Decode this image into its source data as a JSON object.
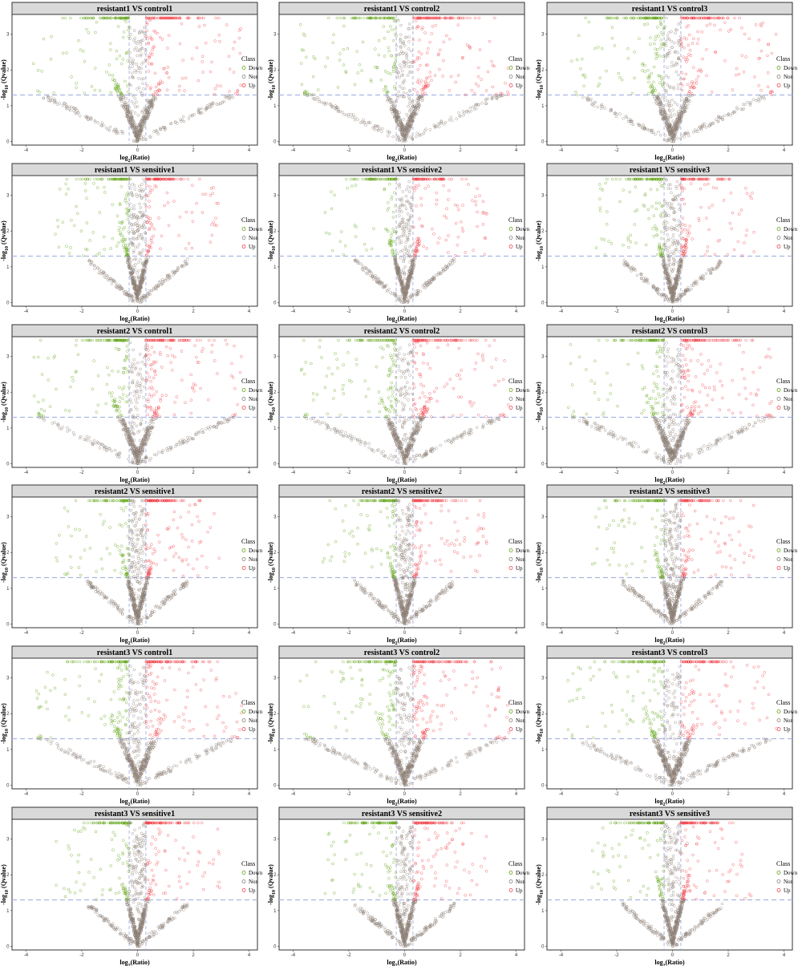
{
  "chart_data": [
    {
      "type": "scatter",
      "title": "resistant1 VS control1",
      "xlabel": "log2(Ratio)",
      "ylabel": "-log10 (Qvalue)",
      "xlim": [
        -4.5,
        4.3
      ],
      "ylim": [
        -0.1,
        3.55
      ],
      "thresholds": {
        "q": 1.3,
        "ratio": [
          -0.3,
          0.3
        ]
      },
      "top_y": 3.45,
      "legend": {
        "title": "Class",
        "entries": [
          "Down",
          "Non",
          "Up"
        ]
      },
      "series": [
        {
          "name": "Down",
          "color": "#63a418"
        },
        {
          "name": "Non",
          "color": "#8c7f76"
        },
        {
          "name": "Up",
          "color": "#f0444c"
        }
      ]
    },
    {
      "type": "scatter",
      "title": "resistant1 VS control2",
      "xlabel": "log2(Ratio)",
      "ylabel": "-log10 (Qvalue)",
      "xlim": [
        -4.5,
        4.3
      ],
      "ylim": [
        -0.1,
        3.55
      ],
      "thresholds": {
        "q": 1.3,
        "ratio": [
          -0.3,
          0.3
        ]
      },
      "top_y": 3.45,
      "legend": {
        "title": "Class",
        "entries": [
          "Down",
          "Non",
          "Up"
        ]
      },
      "series": [
        {
          "name": "Down",
          "color": "#63a418"
        },
        {
          "name": "Non",
          "color": "#8c7f76"
        },
        {
          "name": "Up",
          "color": "#f0444c"
        }
      ]
    },
    {
      "type": "scatter",
      "title": "resistant1 VS control3",
      "xlabel": "log2(Ratio)",
      "ylabel": "-log10 (Qvalue)",
      "xlim": [
        -4.5,
        4.3
      ],
      "ylim": [
        -0.1,
        3.55
      ],
      "thresholds": {
        "q": 1.3,
        "ratio": [
          -0.3,
          0.3
        ]
      },
      "top_y": 3.45,
      "legend": {
        "title": "Class",
        "entries": [
          "Down",
          "Non",
          "Up"
        ]
      },
      "series": [
        {
          "name": "Down",
          "color": "#63a418"
        },
        {
          "name": "Non",
          "color": "#8c7f76"
        },
        {
          "name": "Up",
          "color": "#f0444c"
        }
      ]
    },
    {
      "type": "scatter",
      "title": "resistant1 VS sensitive1",
      "xlabel": "log2(Ratio)",
      "ylabel": "-log10 (Qvalue)",
      "xlim": [
        -4.5,
        4.3
      ],
      "ylim": [
        -0.1,
        3.55
      ],
      "thresholds": {
        "q": 1.3,
        "ratio": [
          -0.3,
          0.3
        ]
      },
      "top_y": 3.45,
      "legend": {
        "title": "Class",
        "entries": [
          "Down",
          "Non",
          "Up"
        ]
      },
      "series": [
        {
          "name": "Down",
          "color": "#63a418"
        },
        {
          "name": "Non",
          "color": "#8c7f76"
        },
        {
          "name": "Up",
          "color": "#f0444c"
        }
      ]
    },
    {
      "type": "scatter",
      "title": "resistant1 VS sensitive2",
      "xlabel": "log2(Ratio)",
      "ylabel": "-log10 (Qvalue)",
      "xlim": [
        -4.5,
        4.3
      ],
      "ylim": [
        -0.1,
        3.55
      ],
      "thresholds": {
        "q": 1.3,
        "ratio": [
          -0.3,
          0.3
        ]
      },
      "top_y": 3.45,
      "legend": {
        "title": "Class",
        "entries": [
          "Down",
          "Non",
          "Up"
        ]
      },
      "series": [
        {
          "name": "Down",
          "color": "#63a418"
        },
        {
          "name": "Non",
          "color": "#8c7f76"
        },
        {
          "name": "Up",
          "color": "#f0444c"
        }
      ]
    },
    {
      "type": "scatter",
      "title": "resistant1 VS sensitive3",
      "xlabel": "log2(Ratio)",
      "ylabel": "-log10 (Qvalue)",
      "xlim": [
        -4.5,
        4.3
      ],
      "ylim": [
        -0.1,
        3.55
      ],
      "thresholds": {
        "q": 1.3,
        "ratio": [
          -0.3,
          0.3
        ]
      },
      "top_y": 3.45,
      "legend": {
        "title": "Class",
        "entries": [
          "Down",
          "Non",
          "Up"
        ]
      },
      "series": [
        {
          "name": "Down",
          "color": "#63a418"
        },
        {
          "name": "Non",
          "color": "#8c7f76"
        },
        {
          "name": "Up",
          "color": "#f0444c"
        }
      ]
    },
    {
      "type": "scatter",
      "title": "resistant2 VS control1",
      "xlabel": "log2(Ratio)",
      "ylabel": "-log10 (Qvalue)",
      "xlim": [
        -4.5,
        4.3
      ],
      "ylim": [
        -0.1,
        3.55
      ],
      "thresholds": {
        "q": 1.3,
        "ratio": [
          -0.3,
          0.3
        ]
      },
      "top_y": 3.45,
      "legend": {
        "title": "Class",
        "entries": [
          "Down",
          "Non",
          "Up"
        ]
      },
      "series": [
        {
          "name": "Down",
          "color": "#63a418"
        },
        {
          "name": "Non",
          "color": "#8c7f76"
        },
        {
          "name": "Up",
          "color": "#f0444c"
        }
      ]
    },
    {
      "type": "scatter",
      "title": "resistant2 VS control2",
      "xlabel": "log2(Ratio)",
      "ylabel": "-log10 (Qvalue)",
      "xlim": [
        -4.5,
        4.3
      ],
      "ylim": [
        -0.1,
        3.55
      ],
      "thresholds": {
        "q": 1.3,
        "ratio": [
          -0.3,
          0.3
        ]
      },
      "top_y": 3.45,
      "legend": {
        "title": "Class",
        "entries": [
          "Down",
          "Non",
          "Up"
        ]
      },
      "series": [
        {
          "name": "Down",
          "color": "#63a418"
        },
        {
          "name": "Non",
          "color": "#8c7f76"
        },
        {
          "name": "Up",
          "color": "#f0444c"
        }
      ]
    },
    {
      "type": "scatter",
      "title": "resistant2 VS control3",
      "xlabel": "log2(Ratio)",
      "ylabel": "-log10 (Qvalue)",
      "xlim": [
        -4.5,
        4.3
      ],
      "ylim": [
        -0.1,
        3.55
      ],
      "thresholds": {
        "q": 1.3,
        "ratio": [
          -0.3,
          0.3
        ]
      },
      "top_y": 3.45,
      "legend": {
        "title": "Class",
        "entries": [
          "Down",
          "Non",
          "Up"
        ]
      },
      "series": [
        {
          "name": "Down",
          "color": "#63a418"
        },
        {
          "name": "Non",
          "color": "#8c7f76"
        },
        {
          "name": "Up",
          "color": "#f0444c"
        }
      ]
    },
    {
      "type": "scatter",
      "title": "resistant2 VS sensitive1",
      "xlabel": "log2(Ratio)",
      "ylabel": "-log10 (Qvalue)",
      "xlim": [
        -4.5,
        4.3
      ],
      "ylim": [
        -0.1,
        3.55
      ],
      "thresholds": {
        "q": 1.3,
        "ratio": [
          -0.3,
          0.3
        ]
      },
      "top_y": 3.45,
      "legend": {
        "title": "Class",
        "entries": [
          "Down",
          "Non",
          "Up"
        ]
      },
      "series": [
        {
          "name": "Down",
          "color": "#63a418"
        },
        {
          "name": "Non",
          "color": "#8c7f76"
        },
        {
          "name": "Up",
          "color": "#f0444c"
        }
      ]
    },
    {
      "type": "scatter",
      "title": "resistant2 VS sensitive2",
      "xlabel": "log2(Ratio)",
      "ylabel": "-log10 (Qvalue)",
      "xlim": [
        -4.5,
        4.3
      ],
      "ylim": [
        -0.1,
        3.55
      ],
      "thresholds": {
        "q": 1.3,
        "ratio": [
          -0.3,
          0.3
        ]
      },
      "top_y": 3.45,
      "legend": {
        "title": "Class",
        "entries": [
          "Down",
          "Non",
          "Up"
        ]
      },
      "series": [
        {
          "name": "Down",
          "color": "#63a418"
        },
        {
          "name": "Non",
          "color": "#8c7f76"
        },
        {
          "name": "Up",
          "color": "#f0444c"
        }
      ]
    },
    {
      "type": "scatter",
      "title": "resistant2 VS sensitive3",
      "xlabel": "log2(Ratio)",
      "ylabel": "-log10 (Qvalue)",
      "xlim": [
        -4.5,
        4.3
      ],
      "ylim": [
        -0.1,
        3.55
      ],
      "thresholds": {
        "q": 1.3,
        "ratio": [
          -0.3,
          0.3
        ]
      },
      "top_y": 3.45,
      "legend": {
        "title": "Class",
        "entries": [
          "Down",
          "Non",
          "Up"
        ]
      },
      "series": [
        {
          "name": "Down",
          "color": "#63a418"
        },
        {
          "name": "Non",
          "color": "#8c7f76"
        },
        {
          "name": "Up",
          "color": "#f0444c"
        }
      ]
    },
    {
      "type": "scatter",
      "title": "resistant3 VS control1",
      "xlabel": "log2(Ratio)",
      "ylabel": "-log10 (Qvalue)",
      "xlim": [
        -4.5,
        4.3
      ],
      "ylim": [
        -0.1,
        3.55
      ],
      "thresholds": {
        "q": 1.3,
        "ratio": [
          -0.3,
          0.3
        ]
      },
      "top_y": 3.45,
      "legend": {
        "title": "Class",
        "entries": [
          "Down",
          "Non",
          "Up"
        ]
      },
      "series": [
        {
          "name": "Down",
          "color": "#63a418"
        },
        {
          "name": "Non",
          "color": "#8c7f76"
        },
        {
          "name": "Up",
          "color": "#f0444c"
        }
      ]
    },
    {
      "type": "scatter",
      "title": "resistant3 VS control2",
      "xlabel": "log2(Ratio)",
      "ylabel": "-log10 (Qvalue)",
      "xlim": [
        -4.5,
        4.3
      ],
      "ylim": [
        -0.1,
        3.55
      ],
      "thresholds": {
        "q": 1.3,
        "ratio": [
          -0.3,
          0.3
        ]
      },
      "top_y": 3.45,
      "legend": {
        "title": "Class",
        "entries": [
          "Down",
          "Non",
          "Up"
        ]
      },
      "series": [
        {
          "name": "Down",
          "color": "#63a418"
        },
        {
          "name": "Non",
          "color": "#8c7f76"
        },
        {
          "name": "Up",
          "color": "#f0444c"
        }
      ]
    },
    {
      "type": "scatter",
      "title": "resistant3 VS control3",
      "xlabel": "log2(Ratio)",
      "ylabel": "-log10 (Qvalue)",
      "xlim": [
        -4.5,
        4.3
      ],
      "ylim": [
        -0.1,
        3.55
      ],
      "thresholds": {
        "q": 1.3,
        "ratio": [
          -0.3,
          0.3
        ]
      },
      "top_y": 3.45,
      "legend": {
        "title": "Class",
        "entries": [
          "Down",
          "Non",
          "Up"
        ]
      },
      "series": [
        {
          "name": "Down",
          "color": "#63a418"
        },
        {
          "name": "Non",
          "color": "#8c7f76"
        },
        {
          "name": "Up",
          "color": "#f0444c"
        }
      ]
    },
    {
      "type": "scatter",
      "title": "resistant3 VS sensitive1",
      "xlabel": "log2(Ratio)",
      "ylabel": "-log10 (Qvalue)",
      "xlim": [
        -4.5,
        4.3
      ],
      "ylim": [
        -0.1,
        3.55
      ],
      "thresholds": {
        "q": 1.3,
        "ratio": [
          -0.3,
          0.3
        ]
      },
      "top_y": 3.45,
      "legend": {
        "title": "Class",
        "entries": [
          "Down",
          "Non",
          "Up"
        ]
      },
      "series": [
        {
          "name": "Down",
          "color": "#63a418"
        },
        {
          "name": "Non",
          "color": "#8c7f76"
        },
        {
          "name": "Up",
          "color": "#f0444c"
        }
      ]
    },
    {
      "type": "scatter",
      "title": "resistant3 VS sensitive2",
      "xlabel": "log2(Ratio)",
      "ylabel": "-log10 (Qvalue)",
      "xlim": [
        -4.5,
        4.3
      ],
      "ylim": [
        -0.1,
        3.55
      ],
      "thresholds": {
        "q": 1.3,
        "ratio": [
          -0.3,
          0.3
        ]
      },
      "top_y": 3.45,
      "legend": {
        "title": "Class",
        "entries": [
          "Down",
          "Non",
          "Up"
        ]
      },
      "series": [
        {
          "name": "Down",
          "color": "#63a418"
        },
        {
          "name": "Non",
          "color": "#8c7f76"
        },
        {
          "name": "Up",
          "color": "#f0444c"
        }
      ]
    },
    {
      "type": "scatter",
      "title": "resistant3 VS sensitive3",
      "xlabel": "log2(Ratio)",
      "ylabel": "-log10 (Qvalue)",
      "xlim": [
        -4.5,
        4.3
      ],
      "ylim": [
        -0.1,
        3.55
      ],
      "thresholds": {
        "q": 1.3,
        "ratio": [
          -0.3,
          0.3
        ]
      },
      "top_y": 3.45,
      "legend": {
        "title": "Class",
        "entries": [
          "Down",
          "Non",
          "Up"
        ]
      },
      "series": [
        {
          "name": "Down",
          "color": "#63a418"
        },
        {
          "name": "Non",
          "color": "#8c7f76"
        },
        {
          "name": "Up",
          "color": "#f0444c"
        }
      ]
    }
  ]
}
